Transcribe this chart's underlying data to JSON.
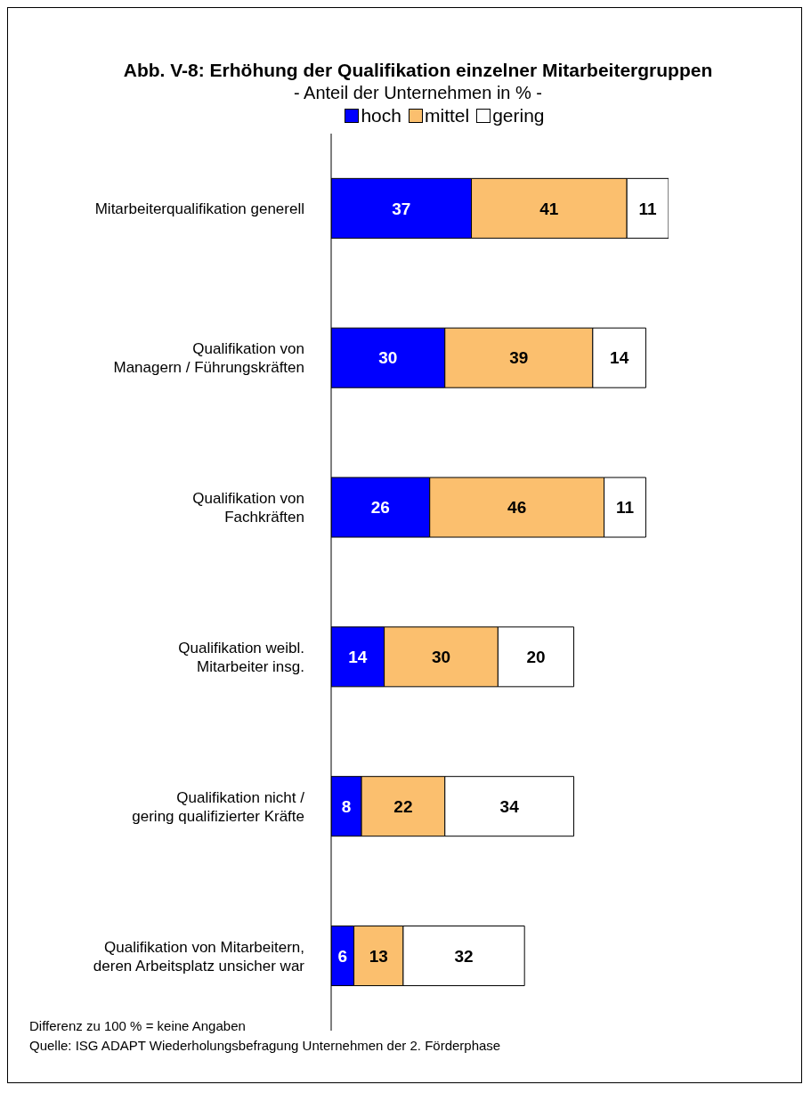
{
  "chart_data": {
    "type": "bar",
    "orientation": "horizontal",
    "stacked": true,
    "title": "Abb. V-8: Erhöhung der Qualifikation einzelner Mitarbeitergruppen",
    "subtitle": "- Anteil der Unternehmen in % -",
    "categories": [
      "Mitarbeiterqualifikation generell",
      "Qualifikation von\nManagern / Führungskräften",
      "Qualifikation von\nFachkräften",
      "Qualifikation weibl.\nMitarbeiter insg.",
      "Qualifikation nicht /\ngering qualifizierter Kräfte",
      "Qualifikation von Mitarbeitern,\nderen Arbeitsplatz unsicher war"
    ],
    "series": [
      {
        "name": "hoch",
        "color": "#0000ff",
        "values": [
          37,
          30,
          26,
          14,
          8,
          6
        ]
      },
      {
        "name": "mittel",
        "color": "#fbbf6e",
        "values": [
          41,
          39,
          46,
          30,
          22,
          13
        ]
      },
      {
        "name": "gering",
        "color": "#ffffff",
        "values": [
          11,
          14,
          11,
          20,
          34,
          32
        ]
      }
    ],
    "data_labels": true,
    "legend": "top",
    "annotations": [
      "Differenz zu 100 % = keine Angaben",
      "Quelle: ISG ADAPT Wiederholungsbefragung Unternehmen der 2. Förderphase"
    ]
  }
}
